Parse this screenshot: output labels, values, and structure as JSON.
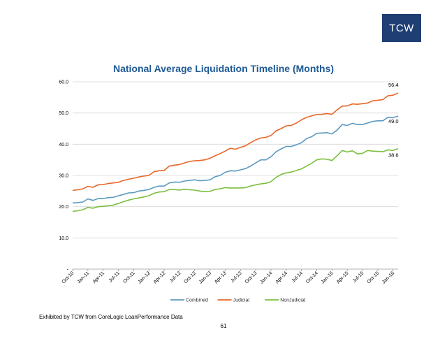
{
  "logo": {
    "text": "TCW"
  },
  "footer": {
    "source": "Exhibited by TCW from CoreLogic LoanPerformance Data",
    "page": "61"
  },
  "chart_data": {
    "type": "line",
    "title": "National Average Liquidation Timeline (Months)",
    "xlabel": "",
    "ylabel": "",
    "ylim": [
      0,
      60
    ],
    "y_ticks": [
      0,
      10,
      20,
      30,
      40,
      50,
      60
    ],
    "y_tick_labels": [
      "-",
      "10.0",
      "20.0",
      "30.0",
      "40.0",
      "50.0",
      "60.0"
    ],
    "grid": true,
    "legend": "bottom",
    "x_tick_labels": [
      "Oct-10",
      "Jan-11",
      "Apr-11",
      "Jul-11",
      "Oct-11",
      "Jan-12",
      "Apr-12",
      "Jul-12",
      "Oct-12",
      "Jan-13",
      "Apr-13",
      "Jul-13",
      "Oct-13",
      "Jan-14",
      "Apr-14",
      "Jul-14",
      "Oct-14",
      "Jan-15",
      "Apr-15",
      "Jul-15",
      "Oct-15",
      "Jan-16"
    ],
    "series": [
      {
        "name": "Combined",
        "color": "#5b9bbf",
        "end_label": "49.0",
        "values": [
          21.2,
          21.3,
          21.5,
          22.5,
          22.0,
          22.6,
          22.6,
          22.9,
          23.0,
          23.5,
          23.9,
          24.4,
          24.5,
          25.0,
          25.2,
          25.5,
          26.2,
          26.6,
          26.6,
          27.6,
          27.9,
          27.8,
          28.2,
          28.4,
          28.6,
          28.3,
          28.4,
          28.6,
          29.6,
          30.0,
          31.0,
          31.5,
          31.4,
          31.8,
          32.2,
          33.0,
          34.0,
          35.0,
          35.0,
          36.0,
          37.6,
          38.5,
          39.3,
          39.3,
          39.8,
          40.5,
          41.8,
          42.4,
          43.5,
          43.6,
          43.7,
          43.3,
          44.5,
          46.3,
          46.0,
          46.7,
          46.3,
          46.3,
          46.8,
          47.3,
          47.5,
          47.5,
          48.6,
          48.5,
          49.0
        ]
      },
      {
        "name": "Judicial",
        "color": "#e8672a",
        "end_label": "56.4",
        "values": [
          25.2,
          25.4,
          25.7,
          26.5,
          26.2,
          27.0,
          27.1,
          27.4,
          27.6,
          27.8,
          28.4,
          28.8,
          29.1,
          29.5,
          29.8,
          30.0,
          31.2,
          31.5,
          31.6,
          33.0,
          33.3,
          33.5,
          34.0,
          34.5,
          34.7,
          34.8,
          35.0,
          35.5,
          36.3,
          37.0,
          37.8,
          38.7,
          38.4,
          39.0,
          39.5,
          40.5,
          41.4,
          42.0,
          42.2,
          42.8,
          44.3,
          45.0,
          45.9,
          46.0,
          46.8,
          47.8,
          48.6,
          49.1,
          49.5,
          49.6,
          49.8,
          49.6,
          51.0,
          52.2,
          52.3,
          52.9,
          52.8,
          53.0,
          53.2,
          53.9,
          54.1,
          54.3,
          55.5,
          55.7,
          56.4
        ]
      },
      {
        "name": "NonJudicial",
        "color": "#7bbf3f",
        "end_label": "38.6",
        "values": [
          18.5,
          18.7,
          19.0,
          19.8,
          19.5,
          20.0,
          20.1,
          20.3,
          20.5,
          21.0,
          21.6,
          22.1,
          22.5,
          22.8,
          23.1,
          23.5,
          24.3,
          24.7,
          24.8,
          25.5,
          25.5,
          25.3,
          25.6,
          25.4,
          25.3,
          25.0,
          24.8,
          24.9,
          25.5,
          25.7,
          26.1,
          26.0,
          26.0,
          26.0,
          26.1,
          26.6,
          27.0,
          27.3,
          27.5,
          28.0,
          29.4,
          30.3,
          30.8,
          31.1,
          31.6,
          32.1,
          33.0,
          33.9,
          35.0,
          35.3,
          35.2,
          34.8,
          36.3,
          38.0,
          37.5,
          37.9,
          36.9,
          37.1,
          38.0,
          37.8,
          37.7,
          37.6,
          38.2,
          38.0,
          38.6
        ]
      }
    ]
  }
}
